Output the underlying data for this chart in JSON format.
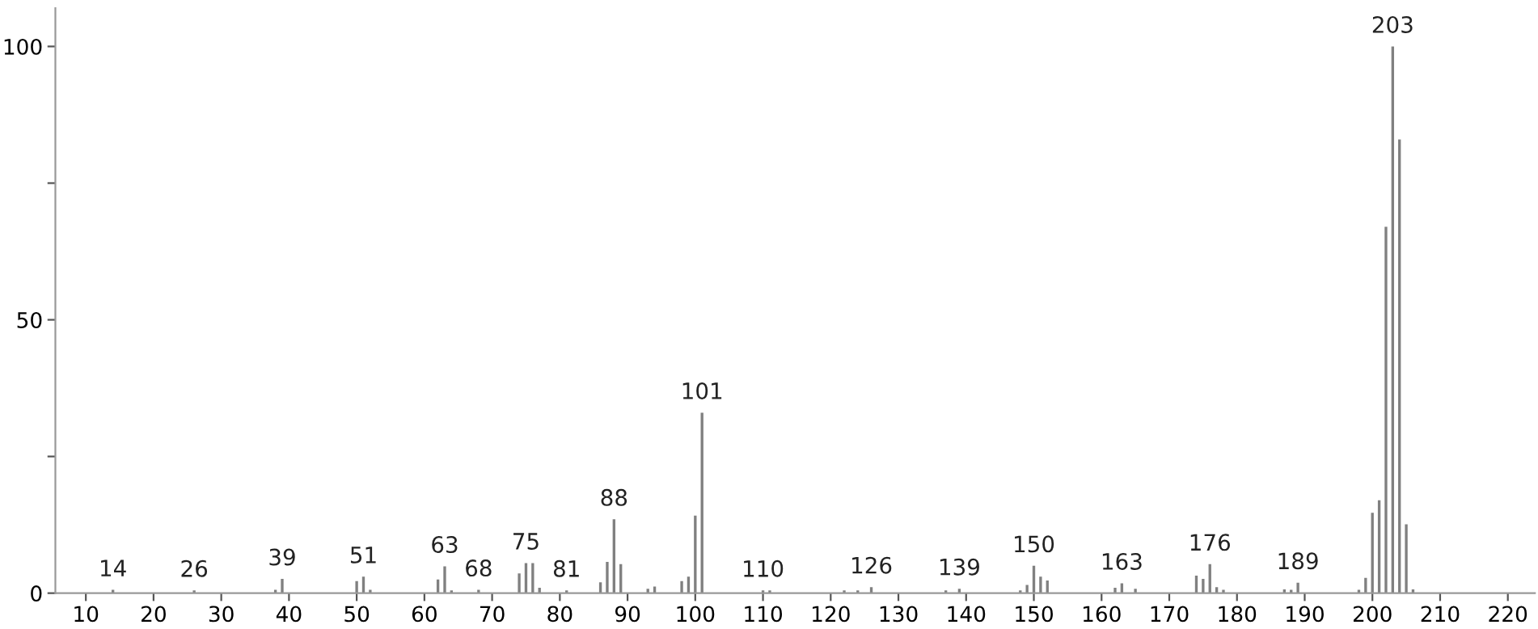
{
  "chart_data": {
    "type": "bar",
    "color": "#808080",
    "x": [
      14,
      26,
      38,
      39,
      50,
      51,
      52,
      62,
      63,
      64,
      68,
      74,
      75,
      76,
      77,
      81,
      86,
      87,
      88,
      89,
      93,
      94,
      98,
      99,
      100,
      101,
      110,
      111,
      122,
      124,
      126,
      137,
      139,
      148,
      149,
      150,
      151,
      152,
      162,
      163,
      165,
      174,
      175,
      176,
      177,
      178,
      187,
      188,
      189,
      198,
      199,
      200,
      201,
      202,
      203,
      204,
      205,
      206
    ],
    "values": [
      0.6,
      0.5,
      0.6,
      2.6,
      2.2,
      3,
      0.6,
      2.5,
      4.9,
      0.5,
      0.6,
      3.6,
      5.5,
      5.5,
      1,
      0.5,
      2,
      5.7,
      13.5,
      5.3,
      0.8,
      1.2,
      2.2,
      3,
      14.2,
      33,
      0.5,
      0.5,
      0.5,
      0.5,
      1.1,
      0.5,
      0.8,
      0.5,
      1.5,
      5,
      3,
      2.3,
      1,
      1.8,
      0.8,
      3.2,
      2.6,
      5.3,
      1.1,
      0.6,
      0.7,
      0.6,
      1.9,
      0.6,
      2.8,
      14.7,
      17,
      67,
      100,
      83,
      12.6,
      0.7
    ],
    "annotations": [
      {
        "text": "14",
        "x": 14,
        "y": 0.6
      },
      {
        "text": "26",
        "x": 26,
        "y": 0.5
      },
      {
        "text": "39",
        "x": 39,
        "y": 2.6
      },
      {
        "text": "51",
        "x": 51,
        "y": 3
      },
      {
        "text": "63",
        "x": 63,
        "y": 4.9
      },
      {
        "text": "68",
        "x": 68,
        "y": 0.6
      },
      {
        "text": "75",
        "x": 75,
        "y": 5.5
      },
      {
        "text": "81",
        "x": 81,
        "y": 0.5
      },
      {
        "text": "88",
        "x": 88,
        "y": 13.5
      },
      {
        "text": "101",
        "x": 101,
        "y": 33
      },
      {
        "text": "110",
        "x": 110,
        "y": 0.5
      },
      {
        "text": "126",
        "x": 126,
        "y": 1.1
      },
      {
        "text": "139",
        "x": 139,
        "y": 0.8
      },
      {
        "text": "150",
        "x": 150,
        "y": 5
      },
      {
        "text": "163",
        "x": 163,
        "y": 1.8
      },
      {
        "text": "176",
        "x": 176,
        "y": 5.3
      },
      {
        "text": "189",
        "x": 189,
        "y": 1.9
      },
      {
        "text": "203",
        "x": 203,
        "y": 100
      }
    ],
    "xlim": [
      5.5,
      224
    ],
    "xticks": [
      10,
      20,
      30,
      40,
      50,
      60,
      70,
      80,
      90,
      100,
      110,
      120,
      130,
      140,
      150,
      160,
      170,
      180,
      190,
      200,
      210,
      220
    ],
    "ylim": [
      0,
      107
    ],
    "yticks": [
      0,
      {
        "value": 25,
        "label": null
      },
      50,
      {
        "value": 75,
        "label": null
      },
      100
    ],
    "grid": false,
    "legend": false
  }
}
